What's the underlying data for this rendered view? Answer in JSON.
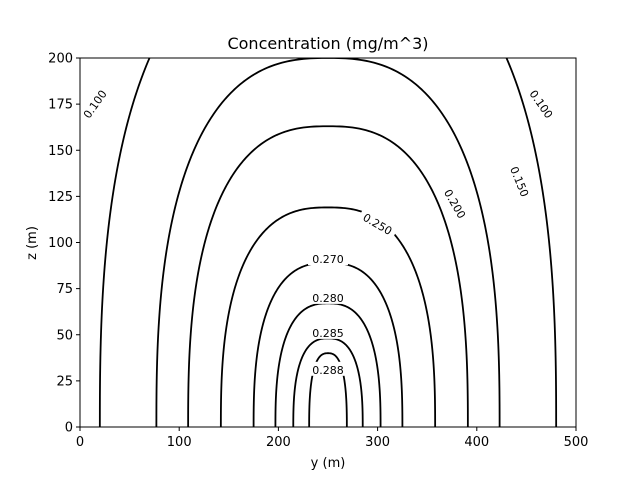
{
  "chart_data": {
    "type": "contour",
    "title": "Concentration (mg/m^3)",
    "xlabel": "y (m)",
    "ylabel": "z (m)",
    "xlim": [
      0,
      500
    ],
    "ylim": [
      0,
      200
    ],
    "xticks": [
      0,
      100,
      200,
      300,
      400,
      500
    ],
    "yticks": [
      0,
      25,
      50,
      75,
      100,
      125,
      150,
      175,
      200
    ],
    "grid": false,
    "legend": "none",
    "line_color": "#000000",
    "center_y": 250,
    "levels": [
      {
        "label": "0.100",
        "value": 0.1,
        "half_width": 230,
        "height": 267,
        "labels_at": [
          {
            "y": 15,
            "z": 175,
            "angle": -55
          },
          {
            "y": 465,
            "z": 175,
            "angle": 55
          }
        ]
      },
      {
        "label": "0.150",
        "value": 0.15,
        "half_width": 173,
        "height": 200,
        "labels_at": [
          {
            "y": 443,
            "z": 133,
            "angle": 68
          }
        ]
      },
      {
        "label": "0.200",
        "value": 0.2,
        "half_width": 141,
        "height": 163,
        "labels_at": [
          {
            "y": 378,
            "z": 121,
            "angle": 60
          }
        ]
      },
      {
        "label": "0.250",
        "value": 0.25,
        "half_width": 108,
        "height": 119,
        "labels_at": [
          {
            "y": 300,
            "z": 110,
            "angle": 30
          }
        ]
      },
      {
        "label": "0.270",
        "value": 0.27,
        "half_width": 75,
        "height": 89,
        "labels_at": [
          {
            "y": 250,
            "z": 91,
            "angle": 0
          }
        ]
      },
      {
        "label": "0.280",
        "value": 0.28,
        "half_width": 53,
        "height": 67,
        "labels_at": [
          {
            "y": 250,
            "z": 70,
            "angle": 0
          }
        ]
      },
      {
        "label": "0.285",
        "value": 0.285,
        "half_width": 35,
        "height": 48,
        "labels_at": [
          {
            "y": 250,
            "z": 51,
            "angle": 0
          }
        ]
      },
      {
        "label": "0.288",
        "value": 0.288,
        "half_width": 19,
        "height": 40,
        "labels_at": [
          {
            "y": 250,
            "z": 31,
            "angle": 0
          }
        ]
      }
    ]
  }
}
